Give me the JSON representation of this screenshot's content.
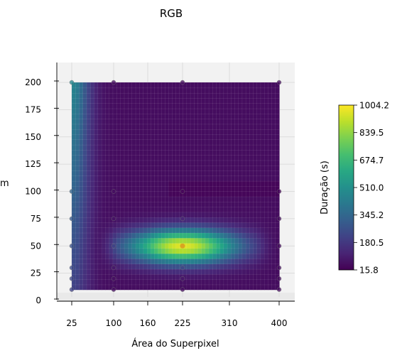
{
  "chart_data": {
    "type": "heatmap",
    "title": "RGB",
    "xlabel": "Área do Superpixel",
    "ylabel": "m",
    "x_ticks": [
      25,
      100,
      160,
      225,
      310,
      400
    ],
    "y_ticks": [
      0,
      25,
      50,
      75,
      100,
      125,
      150,
      175,
      200
    ],
    "xlim": [
      25,
      400
    ],
    "ylim": [
      10,
      200
    ],
    "z_range": [
      15.8,
      1004.2
    ],
    "colormap": "viridis",
    "colorbar": {
      "label": "Duração (s)",
      "ticks": [
        "1004.2",
        "839.5",
        "674.7",
        "510.0",
        "345.2",
        "180.5",
        "15.8"
      ],
      "placement": "right"
    },
    "sample_points": {
      "x": [
        25,
        100,
        225,
        400
      ],
      "y": [
        10,
        20,
        30,
        50,
        75,
        100,
        200
      ]
    },
    "peak": {
      "x": 225,
      "y": 50,
      "value": 1004.2
    },
    "grid": true
  }
}
